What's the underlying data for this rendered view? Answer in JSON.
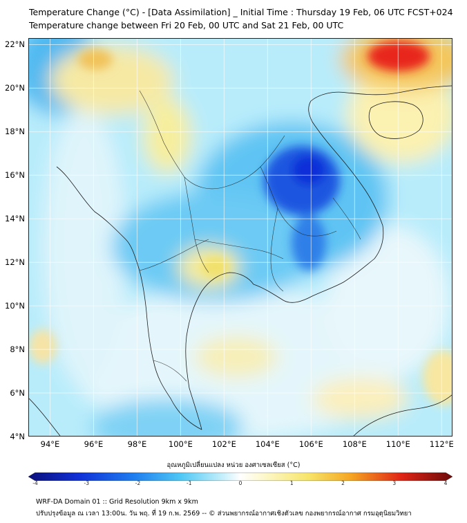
{
  "header": {
    "title_line1": "Temperature Change (°C) - [Data Assimilation] _ Initial Time : Thursday 19 Feb, 06 UTC FCST+024",
    "title_line2": "Temperature change between Fri 20 Feb, 00 UTC and Sat 21 Feb, 00 UTC"
  },
  "map": {
    "lat_labels": [
      "22°N",
      "20°N",
      "18°N",
      "16°N",
      "14°N",
      "12°N",
      "10°N",
      "8°N",
      "6°N",
      "4°N"
    ],
    "lon_labels": [
      "94°E",
      "96°E",
      "98°E",
      "100°E",
      "102°E",
      "104°E",
      "106°E",
      "108°E",
      "110°E",
      "112°E"
    ],
    "lat_values": [
      22,
      20,
      18,
      16,
      14,
      12,
      10,
      8,
      6,
      4
    ],
    "lon_values": [
      94,
      96,
      98,
      100,
      102,
      104,
      106,
      108,
      110,
      112
    ],
    "extent": {
      "lon_min": 93,
      "lon_max": 112.5,
      "lat_min": 4,
      "lat_max": 22.3
    },
    "colors": {
      "strong_cooling": "#0a2fd8",
      "cooling": "#3fb6f0",
      "slight_cooling": "#b8ecfb",
      "neutral": "#f2f8fa",
      "warming": "#f7e98a",
      "strong_warming": "#e8261a"
    }
  },
  "colorbar": {
    "title": "อุณหภูมิเปลี่ยนแปลง หน่วย องศาเซลเซียส (°C)",
    "tick_labels": [
      "-4",
      "-3",
      "-2",
      "-1",
      "0",
      "1",
      "2",
      "3",
      "4"
    ],
    "min": -4,
    "max": 4
  },
  "footer": {
    "line1": "WRF-DA Domain 01 :: Grid Resolution 9km x 9km",
    "line2": "ปรับปรุงข้อมูล ณ เวลา 13:00น. วัน พฤ. ที่ 19 ก.พ. 2569 -- © ส่วนพยากรณ์อากาศเชิงตัวเลข กองพยากรณ์อากาศ กรมอุตุนิยมวิทยา"
  }
}
